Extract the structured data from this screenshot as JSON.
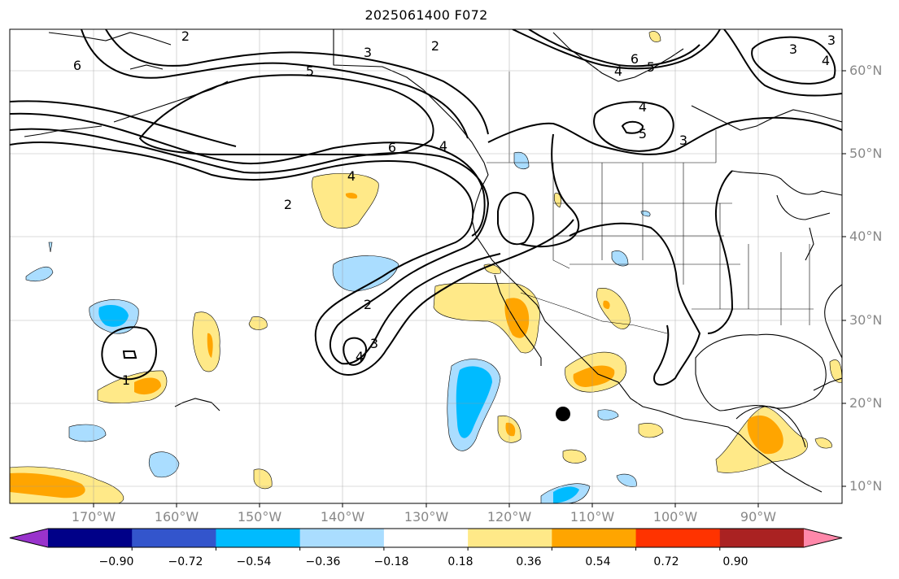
{
  "title": "2025061400 F072",
  "lat_labels": [
    "60°N",
    "50°N",
    "40°N",
    "30°N",
    "20°N",
    "10°N"
  ],
  "lon_labels": [
    "170°W",
    "160°W",
    "150°W",
    "140°W",
    "130°W",
    "120°W",
    "110°W",
    "100°W",
    "90°W"
  ],
  "colorbar": {
    "ticks": [
      "−0.90",
      "−0.72",
      "−0.54",
      "−0.36",
      "−0.18",
      "0.18",
      "0.36",
      "0.54",
      "0.72",
      "0.90"
    ],
    "colors": [
      "#9933cc",
      "#000088",
      "#3355cc",
      "#00bbff",
      "#aaddff",
      "#ffffff",
      "#ffe988",
      "#ffa500",
      "#ff3300",
      "#aa2222",
      "#ff88aa"
    ]
  },
  "contour_labels": [
    "6",
    "3",
    "2",
    "5",
    "6",
    "4",
    "5",
    "4",
    "5",
    "3",
    "3",
    "4",
    "2",
    "4",
    "6",
    "2",
    "2",
    "4",
    "3",
    "1",
    "4",
    "3"
  ],
  "storm_marker": "filled-circle"
}
